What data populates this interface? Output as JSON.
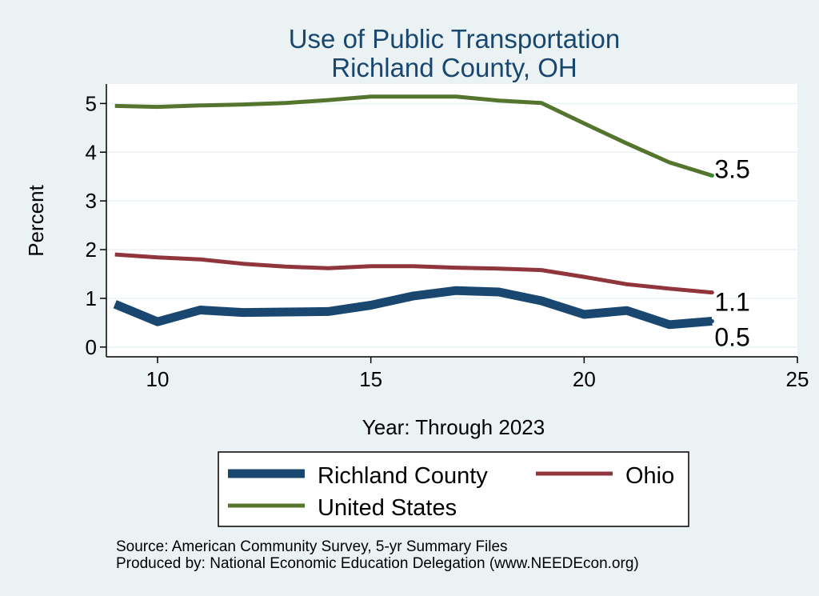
{
  "chart_data": {
    "type": "line",
    "title": "Use of Public Transportation",
    "subtitle": "Richland County, OH",
    "xlabel": "Year: Through 2023",
    "ylabel": "Percent",
    "xlim": [
      8.8,
      25
    ],
    "ylim": [
      -0.2,
      5.4
    ],
    "xticks": [
      10,
      15,
      20,
      25
    ],
    "yticks": [
      0,
      1,
      2,
      3,
      4,
      5
    ],
    "grid": true,
    "legend_position": "bottom",
    "x": [
      9,
      10,
      11,
      12,
      13,
      14,
      15,
      16,
      17,
      18,
      19,
      20,
      21,
      22,
      23
    ],
    "series": [
      {
        "name": "Richland County",
        "color": "#1a476f",
        "values": [
          0.88,
          0.52,
          0.76,
          0.71,
          0.72,
          0.73,
          0.86,
          1.05,
          1.16,
          1.13,
          0.95,
          0.67,
          0.75,
          0.46,
          0.53
        ],
        "end_label": "0.5"
      },
      {
        "name": "Ohio",
        "color": "#90353b",
        "values": [
          1.9,
          1.84,
          1.8,
          1.71,
          1.65,
          1.62,
          1.66,
          1.66,
          1.63,
          1.61,
          1.58,
          1.44,
          1.29,
          1.2,
          1.12
        ],
        "end_label": "1.1"
      },
      {
        "name": "United States",
        "color": "#55752f",
        "values": [
          4.95,
          4.93,
          4.96,
          4.98,
          5.01,
          5.07,
          5.14,
          5.14,
          5.14,
          5.06,
          5.01,
          4.59,
          4.18,
          3.79,
          3.52
        ],
        "end_label": "3.5"
      }
    ],
    "notes": [
      "Source: American Community Survey, 5-yr Summary Files",
      "Produced by: National Economic Education Delegation (www.NEEDEcon.org)"
    ]
  }
}
